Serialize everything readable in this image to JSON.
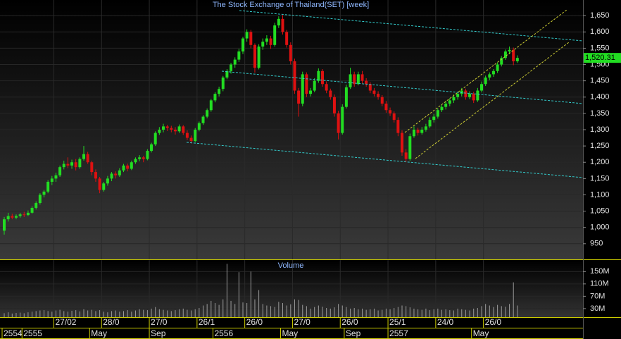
{
  "chart_data": {
    "type": "candlestick",
    "title": "The Stock Exchange of Thailand(SET) [week]",
    "volume_title": "Volume",
    "ylim": [
      902,
      1698
    ],
    "yticks": [
      950,
      {
        "value": 1000,
        "label": "1,000"
      },
      {
        "value": 1050,
        "label": "1,050"
      },
      {
        "value": 1100,
        "label": "1,100"
      },
      {
        "value": 1150,
        "label": "1,150"
      },
      {
        "value": 1200,
        "label": "1,200"
      },
      {
        "value": 1250,
        "label": "1,250"
      },
      {
        "value": 1300,
        "label": "1,300"
      },
      {
        "value": 1350,
        "label": "1,350"
      },
      {
        "value": 1400,
        "label": "1,400"
      },
      {
        "value": 1450,
        "label": "1,450"
      },
      {
        "value": 1500,
        "label": "1,500"
      },
      {
        "value": 1550,
        "label": "1,550"
      },
      {
        "value": 1600,
        "label": "1,600"
      },
      {
        "value": 1650,
        "label": "1,650"
      }
    ],
    "last_price": {
      "value": 1520.31,
      "label": "1,520.31"
    },
    "up_color": "#22dd22",
    "down_color": "#dd1111",
    "categories": [
      null,
      null,
      null,
      null,
      null,
      null,
      null,
      null,
      null,
      null,
      null,
      null,
      null,
      "27/02",
      null,
      null,
      null,
      null,
      null,
      null,
      null,
      null,
      null,
      null,
      null,
      "28/0",
      null,
      null,
      null,
      null,
      null,
      null,
      null,
      null,
      null,
      null,
      null,
      "27/0",
      null,
      null,
      null,
      null,
      null,
      null,
      null,
      null,
      null,
      null,
      null,
      "26/1",
      null,
      null,
      null,
      null,
      null,
      null,
      null,
      null,
      null,
      null,
      null,
      "26/0",
      null,
      null,
      null,
      null,
      null,
      null,
      null,
      null,
      null,
      null,
      null,
      "27/0",
      null,
      null,
      null,
      null,
      null,
      null,
      null,
      null,
      null,
      null,
      null,
      "26/0",
      null,
      null,
      null,
      null,
      null,
      null,
      null,
      null,
      null,
      null,
      null,
      "25/1",
      null,
      null,
      null,
      null,
      null,
      null,
      null,
      null,
      null,
      null,
      null,
      "24/0",
      null,
      null,
      null,
      null,
      null,
      null,
      null,
      null,
      null,
      null,
      null,
      "26/0",
      null,
      null,
      null,
      null,
      null,
      null,
      null,
      null
    ],
    "periods": [
      "2554",
      null,
      null,
      null,
      null,
      "2555",
      null,
      null,
      null,
      null,
      null,
      null,
      null,
      null,
      null,
      null,
      null,
      null,
      null,
      null,
      null,
      null,
      "May",
      null,
      null,
      null,
      null,
      null,
      null,
      null,
      null,
      null,
      null,
      null,
      null,
      null,
      null,
      "Sep",
      null,
      null,
      null,
      null,
      null,
      null,
      null,
      null,
      null,
      null,
      null,
      null,
      null,
      null,
      null,
      "2556",
      null,
      null,
      null,
      null,
      null,
      null,
      null,
      null,
      null,
      null,
      null,
      null,
      null,
      null,
      null,
      null,
      "May",
      null,
      null,
      null,
      null,
      null,
      null,
      null,
      null,
      null,
      null,
      null,
      null,
      null,
      null,
      null,
      "Sep",
      null,
      null,
      null,
      null,
      null,
      null,
      null,
      null,
      null,
      null,
      "2557",
      null,
      null,
      null,
      null,
      null,
      null,
      null,
      null,
      null,
      null,
      null,
      null,
      null,
      null,
      null,
      null,
      null,
      null,
      null,
      null,
      "May",
      null,
      null,
      null,
      null,
      null,
      null,
      null,
      null,
      null,
      null,
      null
    ],
    "ohlc": [
      [
        990,
        1032,
        978,
        1025
      ],
      [
        1025,
        1045,
        1018,
        1035
      ],
      [
        1035,
        1042,
        1025,
        1030
      ],
      [
        1030,
        1040,
        1025,
        1035
      ],
      [
        1035,
        1045,
        1030,
        1040
      ],
      [
        1040,
        1048,
        1032,
        1038
      ],
      [
        1038,
        1052,
        1035,
        1045
      ],
      [
        1045,
        1065,
        1042,
        1060
      ],
      [
        1060,
        1080,
        1055,
        1075
      ],
      [
        1075,
        1105,
        1070,
        1100
      ],
      [
        1100,
        1115,
        1092,
        1110
      ],
      [
        1110,
        1145,
        1105,
        1140
      ],
      [
        1140,
        1158,
        1130,
        1150
      ],
      [
        1150,
        1168,
        1140,
        1160
      ],
      [
        1160,
        1190,
        1155,
        1185
      ],
      [
        1185,
        1205,
        1178,
        1195
      ],
      [
        1195,
        1215,
        1182,
        1190
      ],
      [
        1190,
        1208,
        1180,
        1200
      ],
      [
        1200,
        1210,
        1175,
        1185
      ],
      [
        1185,
        1215,
        1180,
        1210
      ],
      [
        1210,
        1250,
        1205,
        1225
      ],
      [
        1225,
        1232,
        1195,
        1200
      ],
      [
        1200,
        1205,
        1160,
        1170
      ],
      [
        1170,
        1178,
        1140,
        1150
      ],
      [
        1150,
        1155,
        1105,
        1115
      ],
      [
        1115,
        1140,
        1110,
        1135
      ],
      [
        1135,
        1158,
        1128,
        1150
      ],
      [
        1150,
        1170,
        1142,
        1165
      ],
      [
        1165,
        1172,
        1150,
        1160
      ],
      [
        1160,
        1182,
        1155,
        1175
      ],
      [
        1175,
        1195,
        1170,
        1190
      ],
      [
        1190,
        1196,
        1172,
        1180
      ],
      [
        1180,
        1205,
        1176,
        1200
      ],
      [
        1200,
        1215,
        1195,
        1210
      ],
      [
        1210,
        1222,
        1203,
        1215
      ],
      [
        1215,
        1220,
        1200,
        1210
      ],
      [
        1210,
        1240,
        1206,
        1235
      ],
      [
        1235,
        1260,
        1230,
        1255
      ],
      [
        1255,
        1295,
        1250,
        1290
      ],
      [
        1290,
        1308,
        1284,
        1300
      ],
      [
        1300,
        1318,
        1292,
        1310
      ],
      [
        1310,
        1315,
        1296,
        1305
      ],
      [
        1305,
        1312,
        1292,
        1300
      ],
      [
        1300,
        1308,
        1285,
        1295
      ],
      [
        1295,
        1316,
        1290,
        1310
      ],
      [
        1310,
        1314,
        1284,
        1290
      ],
      [
        1290,
        1298,
        1268,
        1275
      ],
      [
        1275,
        1282,
        1258,
        1265
      ],
      [
        1265,
        1305,
        1262,
        1300
      ],
      [
        1300,
        1325,
        1295,
        1320
      ],
      [
        1320,
        1345,
        1315,
        1340
      ],
      [
        1340,
        1365,
        1335,
        1360
      ],
      [
        1360,
        1395,
        1355,
        1390
      ],
      [
        1390,
        1415,
        1384,
        1410
      ],
      [
        1410,
        1432,
        1402,
        1425
      ],
      [
        1425,
        1465,
        1418,
        1460
      ],
      [
        1460,
        1486,
        1455,
        1480
      ],
      [
        1480,
        1505,
        1472,
        1500
      ],
      [
        1500,
        1522,
        1490,
        1515
      ],
      [
        1515,
        1548,
        1508,
        1540
      ],
      [
        1540,
        1585,
        1532,
        1580
      ],
      [
        1580,
        1608,
        1570,
        1600
      ],
      [
        1600,
        1606,
        1550,
        1560
      ],
      [
        1560,
        1565,
        1475,
        1490
      ],
      [
        1490,
        1562,
        1485,
        1555
      ],
      [
        1555,
        1580,
        1545,
        1570
      ],
      [
        1570,
        1590,
        1560,
        1580
      ],
      [
        1580,
        1588,
        1548,
        1560
      ],
      [
        1560,
        1628,
        1555,
        1620
      ],
      [
        1620,
        1648,
        1612,
        1640
      ],
      [
        1640,
        1652,
        1592,
        1600
      ],
      [
        1600,
        1606,
        1552,
        1560
      ],
      [
        1560,
        1568,
        1500,
        1510
      ],
      [
        1510,
        1518,
        1410,
        1420
      ],
      [
        1420,
        1428,
        1340,
        1380
      ],
      [
        1380,
        1478,
        1372,
        1470
      ],
      [
        1470,
        1476,
        1400,
        1410
      ],
      [
        1410,
        1428,
        1402,
        1420
      ],
      [
        1420,
        1458,
        1415,
        1450
      ],
      [
        1450,
        1488,
        1444,
        1480
      ],
      [
        1480,
        1486,
        1432,
        1440
      ],
      [
        1440,
        1448,
        1412,
        1420
      ],
      [
        1420,
        1426,
        1392,
        1400
      ],
      [
        1400,
        1408,
        1340,
        1350
      ],
      [
        1350,
        1358,
        1270,
        1290
      ],
      [
        1290,
        1378,
        1285,
        1370
      ],
      [
        1370,
        1438,
        1365,
        1430
      ],
      [
        1430,
        1490,
        1425,
        1470
      ],
      [
        1470,
        1478,
        1432,
        1440
      ],
      [
        1440,
        1478,
        1436,
        1470
      ],
      [
        1470,
        1480,
        1442,
        1450
      ],
      [
        1450,
        1458,
        1432,
        1440
      ],
      [
        1440,
        1446,
        1412,
        1420
      ],
      [
        1420,
        1428,
        1402,
        1410
      ],
      [
        1410,
        1418,
        1392,
        1400
      ],
      [
        1400,
        1406,
        1372,
        1380
      ],
      [
        1380,
        1388,
        1352,
        1360
      ],
      [
        1360,
        1368,
        1342,
        1350
      ],
      [
        1350,
        1356,
        1322,
        1330
      ],
      [
        1330,
        1338,
        1280,
        1290
      ],
      [
        1290,
        1298,
        1220,
        1230
      ],
      [
        1230,
        1240,
        1200,
        1210
      ],
      [
        1210,
        1288,
        1205,
        1280
      ],
      [
        1280,
        1310,
        1275,
        1300
      ],
      [
        1300,
        1306,
        1282,
        1290
      ],
      [
        1290,
        1308,
        1285,
        1300
      ],
      [
        1300,
        1318,
        1294,
        1310
      ],
      [
        1310,
        1338,
        1305,
        1330
      ],
      [
        1330,
        1348,
        1322,
        1340
      ],
      [
        1340,
        1366,
        1334,
        1360
      ],
      [
        1360,
        1378,
        1354,
        1370
      ],
      [
        1370,
        1388,
        1362,
        1380
      ],
      [
        1380,
        1396,
        1372,
        1390
      ],
      [
        1390,
        1408,
        1382,
        1400
      ],
      [
        1400,
        1416,
        1392,
        1410
      ],
      [
        1410,
        1428,
        1402,
        1420
      ],
      [
        1420,
        1426,
        1392,
        1400
      ],
      [
        1400,
        1418,
        1394,
        1410
      ],
      [
        1410,
        1416,
        1382,
        1390
      ],
      [
        1390,
        1428,
        1385,
        1420
      ],
      [
        1420,
        1448,
        1414,
        1440
      ],
      [
        1440,
        1466,
        1434,
        1460
      ],
      [
        1460,
        1476,
        1452,
        1470
      ],
      [
        1470,
        1486,
        1462,
        1480
      ],
      [
        1480,
        1506,
        1474,
        1500
      ],
      [
        1500,
        1526,
        1494,
        1520
      ],
      [
        1520,
        1546,
        1514,
        1540
      ],
      [
        1540,
        1555,
        1532,
        1545
      ],
      [
        1545,
        1552,
        1498,
        1510
      ],
      [
        1510,
        1528,
        1505,
        1520.31
      ]
    ],
    "volume": {
      "color": "#9a9a9a",
      "ylim": [
        0,
        185
      ],
      "yticks": [
        {
          "value": 30,
          "label": "30M"
        },
        {
          "value": 70,
          "label": "70M"
        },
        {
          "value": 110,
          "label": "110M"
        },
        {
          "value": 150,
          "label": "150M"
        }
      ],
      "values": [
        15,
        18,
        14,
        16,
        17,
        15,
        18,
        20,
        22,
        24,
        25,
        22,
        20,
        24,
        26,
        22,
        20,
        23,
        25,
        21,
        28,
        24,
        26,
        22,
        25,
        20,
        18,
        22,
        24,
        20,
        22,
        25,
        20,
        24,
        28,
        26,
        25,
        30,
        35,
        28,
        26,
        24,
        22,
        25,
        28,
        30,
        26,
        24,
        28,
        32,
        40,
        45,
        55,
        48,
        42,
        60,
        175,
        55,
        45,
        148,
        50,
        48,
        150,
        60,
        90,
        45,
        40,
        38,
        35,
        52,
        48,
        40,
        44,
        60,
        58,
        42,
        38,
        30,
        35,
        40,
        36,
        32,
        30,
        34,
        45,
        40,
        35,
        30,
        32,
        28,
        30,
        26,
        28,
        30,
        24,
        26,
        30,
        28,
        32,
        35,
        40,
        38,
        34,
        30,
        28,
        26,
        30,
        25,
        28,
        30,
        26,
        28,
        25,
        24,
        30,
        28,
        26,
        24,
        30,
        32,
        38,
        45,
        40,
        35,
        42,
        38,
        36,
        45,
        115,
        40
      ]
    }
  }
}
